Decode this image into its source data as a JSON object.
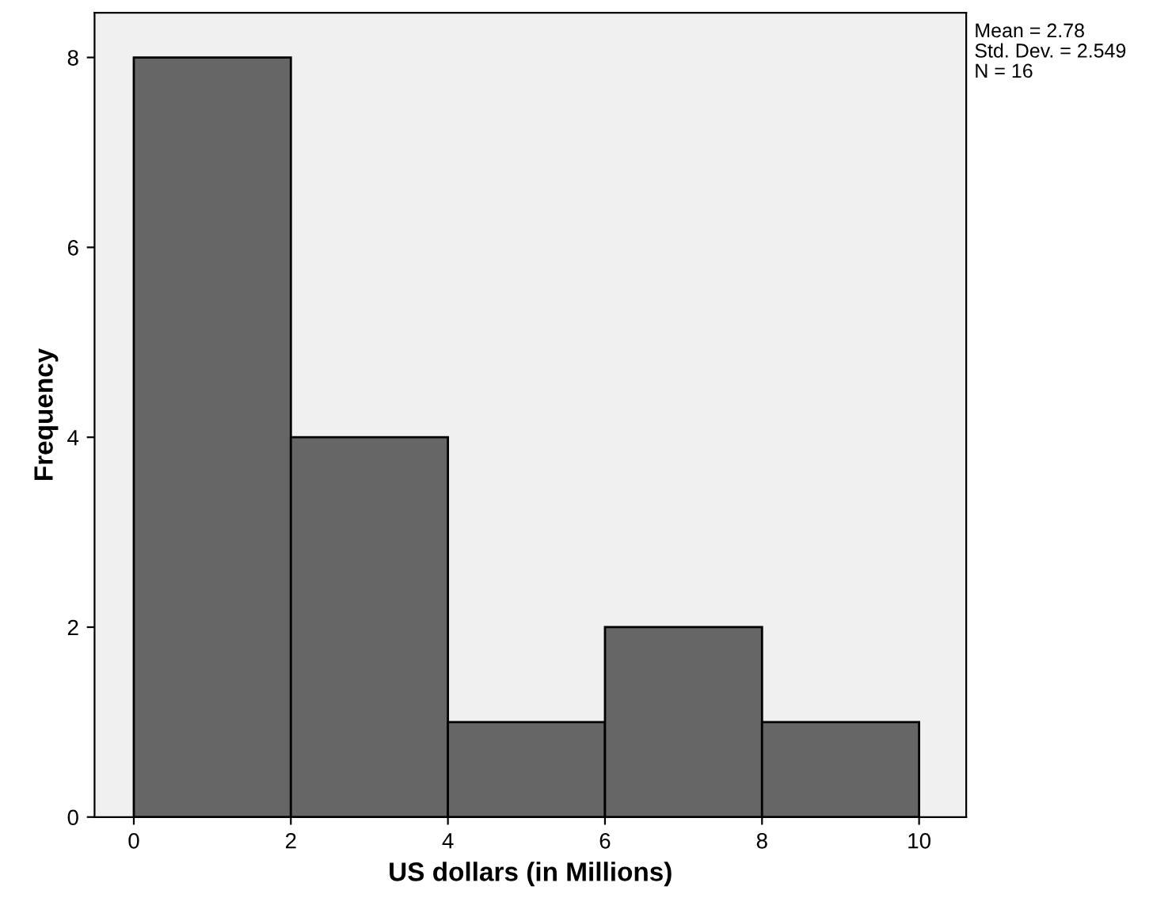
{
  "chart_data": {
    "type": "histogram",
    "xlabel": "US dollars (in Millions)",
    "ylabel": "Frequency",
    "bins": [
      0,
      2,
      4,
      6,
      8,
      10
    ],
    "values": [
      8,
      4,
      1,
      2,
      1
    ],
    "color": "#666666",
    "xlim": [
      -0.5,
      10.6
    ],
    "xticks": [
      0,
      2,
      4,
      6,
      8,
      10
    ],
    "ylim": [
      0,
      8.47
    ],
    "yticks": [
      0,
      2,
      4,
      6,
      8
    ],
    "grid": false,
    "legend": false,
    "annotations": [
      "Mean = 2.78",
      "Std. Dev. = 2.549",
      "N = 16"
    ]
  }
}
